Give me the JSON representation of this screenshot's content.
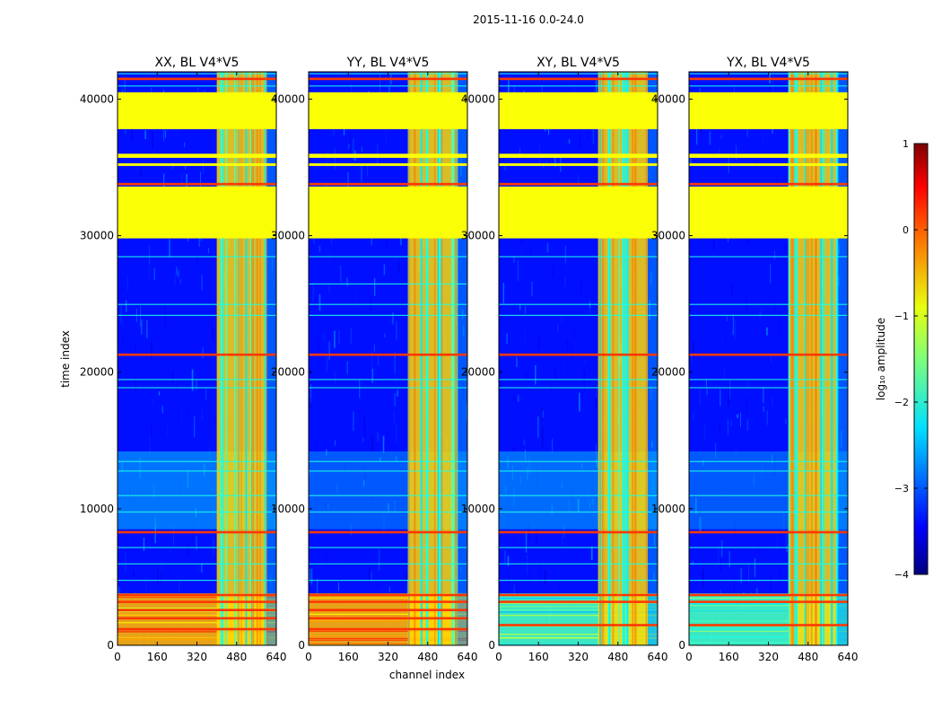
{
  "chart_data": {
    "type": "heatmap",
    "suptitle": "2015-11-16 0.0-24.0",
    "xlabel": "channel index",
    "ylabel": "time index",
    "xlim": [
      0,
      640
    ],
    "ylim": [
      0,
      42000
    ],
    "xticks": [
      0,
      160,
      320,
      480,
      640
    ],
    "yticks": [
      0,
      10000,
      20000,
      30000,
      40000
    ],
    "colorbar": {
      "label": "log₁₀ amplitude",
      "vmin": -4,
      "vmax": 1,
      "ticks": [
        1,
        0,
        -1,
        -2,
        -3,
        -4
      ],
      "tick_labels": [
        "1",
        "0",
        "−1",
        "−2",
        "−3",
        "−4"
      ],
      "colormap": "jet"
    },
    "fill_value": -0.9,
    "panels": [
      {
        "title": "XX, BL V4*V5",
        "background": -3.3,
        "cross_pol": false,
        "rfi_channels": {
          "start": 400,
          "end": 600,
          "level": -0.7
        },
        "flagged_time_ranges": [
          [
            29800,
            33600
          ],
          [
            37800,
            40500
          ],
          [
            35700,
            36000
          ],
          [
            35100,
            35300
          ]
        ],
        "bright_lines": [
          33800,
          21300,
          8300,
          3700,
          3200,
          2600,
          2000,
          1200,
          41500
        ],
        "faint_lines": [
          28500,
          25000,
          24200,
          19500,
          18900,
          13500,
          12800,
          11000,
          9800,
          7200,
          6000,
          4800,
          41900,
          41000
        ],
        "low_band": {
          "from": 0,
          "to": 3800,
          "level": -0.5
        },
        "mid_band": {
          "from": 8500,
          "to": 14200,
          "level": -2.2
        }
      },
      {
        "title": "YY, BL V4*V5",
        "background": -3.3,
        "cross_pol": false,
        "rfi_channels": {
          "start": 400,
          "end": 600,
          "level": -0.7
        },
        "flagged_time_ranges": [
          [
            29800,
            33600
          ],
          [
            37800,
            40500
          ],
          [
            35700,
            36000
          ],
          [
            35100,
            35300
          ]
        ],
        "bright_lines": [
          33800,
          21300,
          8300,
          3700,
          3200,
          2600,
          2000,
          1200,
          41500
        ],
        "faint_lines": [
          28500,
          26500,
          25000,
          24200,
          19500,
          18900,
          13500,
          12800,
          11000,
          9800,
          7200,
          6000,
          4800,
          41900,
          41000
        ],
        "low_band": {
          "from": 0,
          "to": 3800,
          "level": -0.5
        },
        "mid_band": {
          "from": 8500,
          "to": 14200,
          "level": -2.5
        }
      },
      {
        "title": "XY, BL V4*V5",
        "background": -3.3,
        "cross_pol": true,
        "rfi_channels": {
          "start": 400,
          "end": 600,
          "level": -0.7
        },
        "flagged_time_ranges": [
          [
            29800,
            33600
          ],
          [
            37800,
            40500
          ],
          [
            35700,
            36000
          ],
          [
            35100,
            35300
          ]
        ],
        "bright_lines": [
          33800,
          21300,
          8300,
          3700,
          3200,
          1500,
          41500
        ],
        "faint_lines": [
          28500,
          25000,
          24200,
          19500,
          18900,
          13500,
          12800,
          11000,
          9800,
          7200,
          6000,
          4800,
          41900,
          41000
        ],
        "low_band": {
          "from": 0,
          "to": 3800,
          "level": -1.8
        },
        "mid_band": {
          "from": 8500,
          "to": 14200,
          "level": -2.3
        }
      },
      {
        "title": "YX, BL V4*V5",
        "background": -3.3,
        "cross_pol": true,
        "rfi_channels": {
          "start": 400,
          "end": 600,
          "level": -0.7
        },
        "flagged_time_ranges": [
          [
            29800,
            33600
          ],
          [
            37800,
            40500
          ],
          [
            35700,
            36000
          ],
          [
            35100,
            35300
          ]
        ],
        "bright_lines": [
          33800,
          21300,
          8300,
          3700,
          3200,
          1500,
          41500
        ],
        "faint_lines": [
          28500,
          25000,
          24200,
          19500,
          18900,
          13500,
          12800,
          11000,
          9800,
          7200,
          6000,
          4800,
          41900,
          41000
        ],
        "low_band": {
          "from": 0,
          "to": 3800,
          "level": -1.8
        },
        "mid_band": {
          "from": 8500,
          "to": 14200,
          "level": -2.5
        }
      }
    ]
  }
}
